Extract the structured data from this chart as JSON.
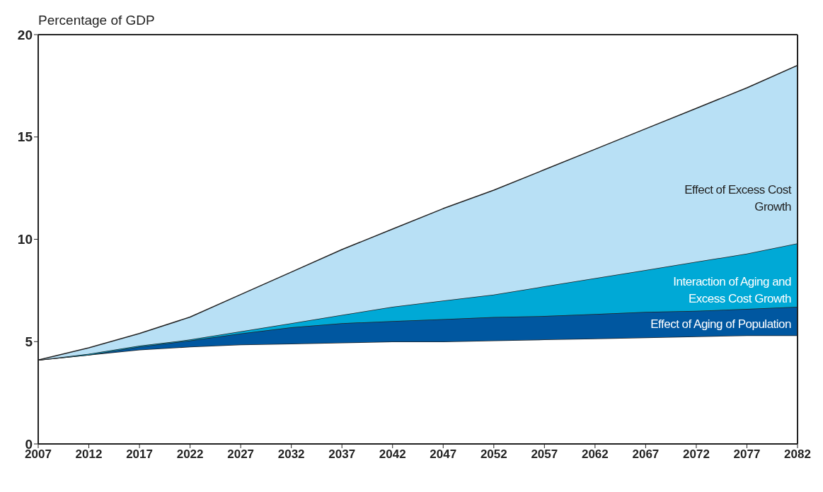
{
  "chart_data": {
    "type": "area",
    "stacked": true,
    "ylabel": "Percentage of GDP",
    "x": [
      2007,
      2012,
      2017,
      2022,
      2027,
      2032,
      2037,
      2042,
      2047,
      2052,
      2057,
      2062,
      2067,
      2072,
      2077,
      2082
    ],
    "series": [
      {
        "color": "#ffffff",
        "values": [
          4.1,
          4.35,
          4.6,
          4.75,
          4.85,
          4.9,
          4.95,
          5.0,
          5.0,
          5.05,
          5.1,
          5.15,
          5.2,
          5.25,
          5.3,
          5.3
        ]
      },
      {
        "name": "Effect of Aging of Population",
        "color": "#0057a0",
        "values": [
          0,
          0,
          0.15,
          0.3,
          0.55,
          0.8,
          0.95,
          1.0,
          1.1,
          1.15,
          1.15,
          1.2,
          1.25,
          1.25,
          1.3,
          1.4
        ]
      },
      {
        "name": "Interaction of Aging and Excess Cost Growth",
        "color": "#00a9d6",
        "values": [
          0,
          0.05,
          0.05,
          0.05,
          0.1,
          0.2,
          0.4,
          0.7,
          0.9,
          1.1,
          1.45,
          1.75,
          2.05,
          2.4,
          2.7,
          3.1
        ]
      },
      {
        "name": "Effect of Excess Cost Growth",
        "color": "#b8e0f5",
        "values": [
          0,
          0.3,
          0.6,
          1.1,
          1.8,
          2.5,
          3.2,
          3.8,
          4.5,
          5.1,
          5.7,
          6.3,
          6.9,
          7.5,
          8.1,
          8.7
        ]
      }
    ],
    "xlim": [
      2007,
      2082
    ],
    "xticks": [
      2007,
      2012,
      2017,
      2022,
      2027,
      2032,
      2037,
      2042,
      2047,
      2052,
      2057,
      2062,
      2067,
      2072,
      2077,
      2082
    ],
    "ylim": [
      0,
      20
    ],
    "yticks": [
      0,
      5,
      10,
      15,
      20
    ],
    "grid": false
  }
}
